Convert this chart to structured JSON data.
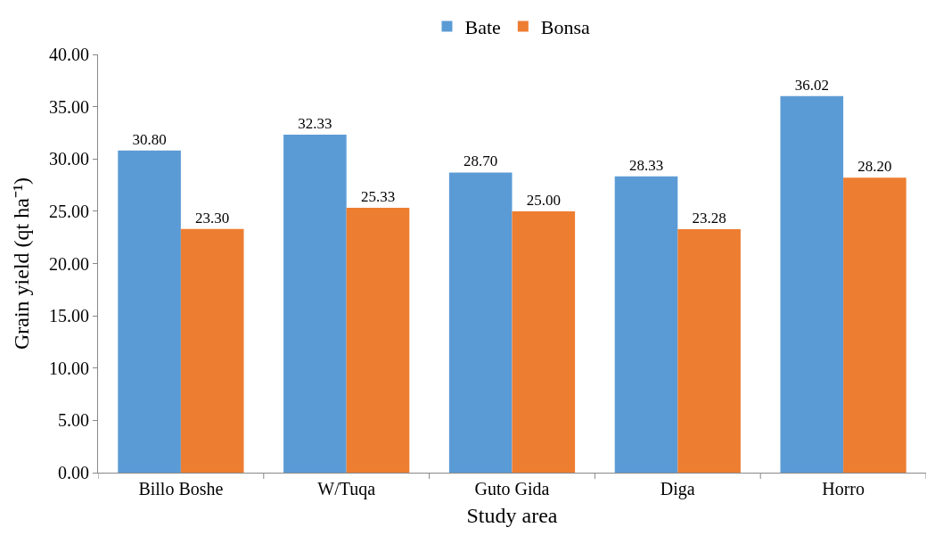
{
  "chart_data": {
    "type": "bar",
    "xlabel": "Study area",
    "ylabel": "Grain yield (qt ha⁻¹)",
    "categories": [
      "Billo Boshe",
      "W/Tuqa",
      "Guto Gida",
      "Diga",
      "Horro"
    ],
    "series": [
      {
        "name": "Bate",
        "color": "#5b9bd5",
        "values": [
          30.8,
          32.33,
          28.7,
          28.33,
          36.02
        ],
        "value_labels": [
          "30.80",
          "32.33",
          "28.70",
          "28.33",
          "36.02"
        ]
      },
      {
        "name": "Bonsa",
        "color": "#ed7d31",
        "values": [
          23.3,
          25.33,
          25.0,
          23.28,
          28.2
        ],
        "value_labels": [
          "23.30",
          "25.33",
          "25.00",
          "23.28",
          "28.20"
        ]
      }
    ],
    "ylim": [
      0,
      40
    ],
    "yticks": [
      {
        "value": 0,
        "label": "0.00"
      },
      {
        "value": 5,
        "label": "5.00"
      },
      {
        "value": 10,
        "label": "10.00"
      },
      {
        "value": 15,
        "label": "15.00"
      },
      {
        "value": 20,
        "label": "20.00"
      },
      {
        "value": 25,
        "label": "25.00"
      },
      {
        "value": 30,
        "label": "30.00"
      },
      {
        "value": 35,
        "label": "35.00"
      },
      {
        "value": 40,
        "label": "40.00"
      }
    ],
    "legend": "top"
  }
}
